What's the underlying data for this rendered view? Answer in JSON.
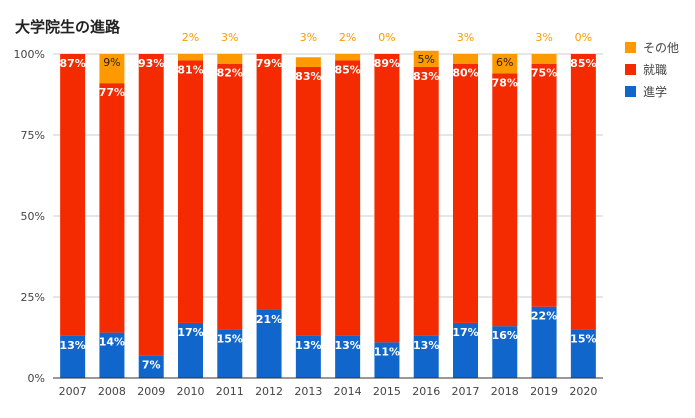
{
  "chart_data": {
    "type": "bar",
    "stacked": true,
    "percent_stacked": true,
    "title": "大学院生の進路",
    "xlabel": "",
    "ylabel": "",
    "ylim": [
      0,
      100
    ],
    "yticks": [
      "0%",
      "25%",
      "50%",
      "75%",
      "100%"
    ],
    "grid": true,
    "legend_position": "right",
    "categories": [
      "2007",
      "2008",
      "2009",
      "2010",
      "2011",
      "2012",
      "2013",
      "2014",
      "2015",
      "2016",
      "2017",
      "2018",
      "2019",
      "2020"
    ],
    "series": [
      {
        "name": "進学",
        "color": "#1166cc",
        "values": [
          13,
          14,
          7,
          17,
          15,
          21,
          13,
          13,
          11,
          13,
          17,
          16,
          22,
          15
        ],
        "labels": [
          "13%",
          "14%",
          "7%",
          "17%",
          "15%",
          "21%",
          "13%",
          "13%",
          "11%",
          "13%",
          "17%",
          "16%",
          "22%",
          "15%"
        ]
      },
      {
        "name": "就職",
        "color": "#f42a00",
        "values": [
          87,
          77,
          93,
          81,
          82,
          79,
          83,
          85,
          89,
          83,
          80,
          78,
          75,
          85
        ],
        "labels": [
          "87%",
          "77%",
          "93%",
          "81%",
          "82%",
          "79%",
          "83%",
          "85%",
          "89%",
          "83%",
          "80%",
          "78%",
          "75%",
          "85%"
        ]
      },
      {
        "name": "その他",
        "color": "#ff9900",
        "values": [
          0,
          9,
          0,
          2,
          3,
          0,
          3,
          2,
          0,
          5,
          3,
          6,
          3,
          0
        ],
        "labels": [
          "",
          "9%",
          "",
          "2%",
          "3%",
          "",
          "3%",
          "2%",
          "0%",
          "5%",
          "3%",
          "6%",
          "3%",
          "0%"
        ]
      }
    ]
  }
}
